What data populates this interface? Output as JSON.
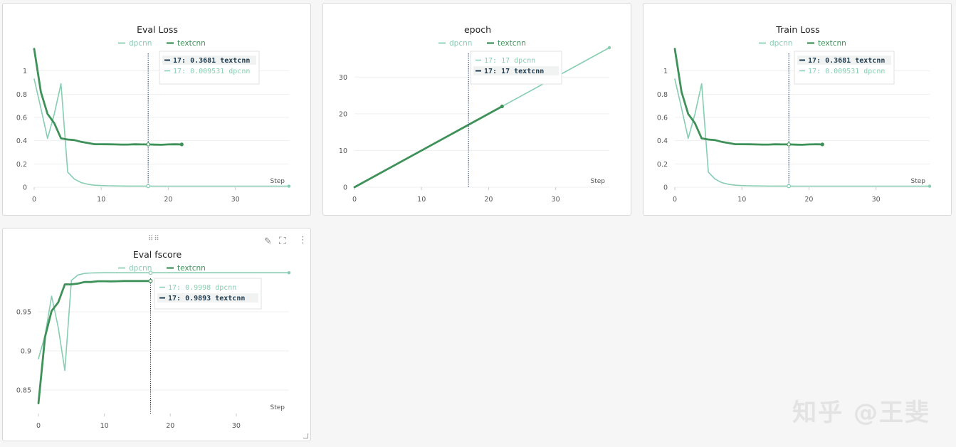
{
  "colors": {
    "dpcnn": "#86cdb2",
    "textcnn": "#3e9158",
    "grid": "#efefef",
    "cursor": "#1f3b6e"
  },
  "icons": {
    "edit": "pencil-icon",
    "expand": "fullscreen-icon",
    "more": "more-vertical-icon",
    "drag": "drag-handle-icon"
  },
  "watermark": "知乎 @王斐",
  "panels": [
    {
      "title": "Eval Loss",
      "legend": [
        "dpcnn",
        "textcnn"
      ],
      "step_label": "Step",
      "xticks": [
        "0",
        "10",
        "20",
        "30"
      ],
      "yticks": [
        "0",
        "0.2",
        "0.4",
        "0.6",
        "0.8",
        "1"
      ],
      "tooltip": [
        {
          "text": "17: 0.3681 textcnn",
          "series": "textcnn",
          "bold": true
        },
        {
          "text": "17: 0.009531 dpcnn",
          "series": "dpcnn",
          "bold": false
        }
      ]
    },
    {
      "title": "epoch",
      "legend": [
        "dpcnn",
        "textcnn"
      ],
      "step_label": "Step",
      "xticks": [
        "0",
        "10",
        "20",
        "30"
      ],
      "yticks": [
        "0",
        "10",
        "20",
        "30"
      ],
      "tooltip": [
        {
          "text": "17: 17 dpcnn",
          "series": "dpcnn",
          "bold": false
        },
        {
          "text": "17: 17 textcnn",
          "series": "textcnn",
          "bold": true
        }
      ]
    },
    {
      "title": "Train Loss",
      "legend": [
        "dpcnn",
        "textcnn"
      ],
      "step_label": "Step",
      "xticks": [
        "0",
        "10",
        "20",
        "30"
      ],
      "yticks": [
        "0",
        "0.2",
        "0.4",
        "0.6",
        "0.8",
        "1"
      ],
      "tooltip": [
        {
          "text": "17: 0.3681 textcnn",
          "series": "textcnn",
          "bold": true
        },
        {
          "text": "17: 0.009531 dpcnn",
          "series": "dpcnn",
          "bold": false
        }
      ]
    },
    {
      "title": "Eval fscore",
      "legend": [
        "dpcnn",
        "textcnn"
      ],
      "step_label": "Step",
      "xticks": [
        "0",
        "10",
        "20",
        "30"
      ],
      "yticks": [
        "0.85",
        "0.9",
        "0.95"
      ],
      "tooltip": [
        {
          "text": "17: 0.9998 dpcnn",
          "series": "dpcnn",
          "bold": false
        },
        {
          "text": "17: 0.9893 textcnn",
          "series": "textcnn",
          "bold": true
        }
      ]
    }
  ],
  "chart_data": [
    {
      "type": "line",
      "title": "Eval Loss",
      "xlabel": "Step",
      "ylabel": "",
      "xlim": [
        0,
        38
      ],
      "ylim": [
        0,
        1.2
      ],
      "cursor_x": 17,
      "series": [
        {
          "name": "dpcnn",
          "x": [
            0,
            1,
            2,
            3,
            4,
            5,
            6,
            7,
            8,
            9,
            10,
            11,
            12,
            13,
            14,
            15,
            16,
            17,
            18,
            19,
            20,
            21,
            22,
            23,
            24,
            25,
            26,
            27,
            28,
            29,
            30,
            31,
            32,
            33,
            34,
            35,
            36,
            37,
            38
          ],
          "y": [
            0.93,
            0.68,
            0.42,
            0.63,
            0.89,
            0.13,
            0.07,
            0.04,
            0.025,
            0.017,
            0.014,
            0.012,
            0.011,
            0.0105,
            0.01,
            0.0098,
            0.0096,
            0.0095,
            0.0094,
            0.0093,
            0.0092,
            0.0091,
            0.009,
            0.009,
            0.009,
            0.009,
            0.009,
            0.009,
            0.009,
            0.009,
            0.009,
            0.009,
            0.009,
            0.009,
            0.009,
            0.009,
            0.009,
            0.009,
            0.009
          ]
        },
        {
          "name": "textcnn",
          "x": [
            0,
            1,
            2,
            3,
            4,
            5,
            6,
            7,
            8,
            9,
            10,
            11,
            12,
            13,
            14,
            15,
            16,
            17,
            18,
            19,
            20,
            21,
            22
          ],
          "y": [
            1.19,
            0.82,
            0.63,
            0.55,
            0.42,
            0.41,
            0.405,
            0.39,
            0.38,
            0.37,
            0.37,
            0.369,
            0.368,
            0.367,
            0.367,
            0.369,
            0.368,
            0.3681,
            0.366,
            0.365,
            0.368,
            0.369,
            0.368
          ]
        }
      ]
    },
    {
      "type": "line",
      "title": "epoch",
      "xlabel": "Step",
      "ylabel": "",
      "xlim": [
        0,
        38
      ],
      "ylim": [
        0,
        38
      ],
      "cursor_x": 17,
      "series": [
        {
          "name": "dpcnn",
          "x": [
            0,
            38
          ],
          "y": [
            0,
            38
          ]
        },
        {
          "name": "textcnn",
          "x": [
            0,
            22
          ],
          "y": [
            0,
            22
          ]
        }
      ]
    },
    {
      "type": "line",
      "title": "Train Loss",
      "xlabel": "Step",
      "ylabel": "",
      "xlim": [
        0,
        38
      ],
      "ylim": [
        0,
        1.2
      ],
      "cursor_x": 17,
      "series": [
        {
          "name": "dpcnn",
          "x": [
            0,
            1,
            2,
            3,
            4,
            5,
            6,
            7,
            8,
            9,
            10,
            11,
            12,
            13,
            14,
            15,
            16,
            17,
            18,
            19,
            20,
            21,
            22,
            23,
            24,
            25,
            26,
            27,
            28,
            29,
            30,
            31,
            32,
            33,
            34,
            35,
            36,
            37,
            38
          ],
          "y": [
            0.93,
            0.68,
            0.42,
            0.63,
            0.89,
            0.13,
            0.07,
            0.04,
            0.025,
            0.017,
            0.014,
            0.012,
            0.011,
            0.0105,
            0.01,
            0.0098,
            0.0096,
            0.0095,
            0.0094,
            0.0093,
            0.0092,
            0.0091,
            0.009,
            0.009,
            0.009,
            0.009,
            0.009,
            0.009,
            0.009,
            0.009,
            0.009,
            0.009,
            0.009,
            0.009,
            0.009,
            0.009,
            0.009,
            0.009,
            0.009
          ]
        },
        {
          "name": "textcnn",
          "x": [
            0,
            1,
            2,
            3,
            4,
            5,
            6,
            7,
            8,
            9,
            10,
            11,
            12,
            13,
            14,
            15,
            16,
            17,
            18,
            19,
            20,
            21,
            22
          ],
          "y": [
            1.19,
            0.82,
            0.63,
            0.55,
            0.42,
            0.41,
            0.405,
            0.39,
            0.38,
            0.37,
            0.37,
            0.369,
            0.368,
            0.367,
            0.367,
            0.369,
            0.368,
            0.3681,
            0.366,
            0.365,
            0.368,
            0.369,
            0.368
          ]
        }
      ]
    },
    {
      "type": "line",
      "title": "Eval fscore",
      "xlabel": "Step",
      "ylabel": "",
      "xlim": [
        0,
        38
      ],
      "ylim": [
        0.82,
        1.0
      ],
      "cursor_x": 17,
      "series": [
        {
          "name": "dpcnn",
          "x": [
            0,
            1,
            2,
            3,
            4,
            5,
            6,
            7,
            8,
            9,
            10,
            11,
            12,
            13,
            14,
            15,
            16,
            17,
            18,
            19,
            20,
            21,
            22,
            23,
            24,
            25,
            26,
            27,
            28,
            29,
            30,
            31,
            32,
            33,
            34,
            35,
            36,
            37,
            38
          ],
          "y": [
            0.89,
            0.92,
            0.97,
            0.93,
            0.875,
            0.99,
            0.997,
            0.999,
            0.9995,
            0.9997,
            0.9998,
            0.9998,
            0.9998,
            0.9998,
            0.9998,
            0.9998,
            0.9998,
            0.9998,
            0.9998,
            0.9998,
            0.9998,
            0.9998,
            0.9998,
            0.9998,
            0.9998,
            0.9998,
            0.9998,
            0.9998,
            0.9998,
            0.9998,
            0.9998,
            0.9998,
            0.9998,
            0.9998,
            0.9998,
            0.9998,
            0.9998,
            0.9998,
            0.9998
          ]
        },
        {
          "name": "textcnn",
          "x": [
            0,
            1,
            2,
            3,
            4,
            5,
            6,
            7,
            8,
            9,
            10,
            11,
            12,
            13,
            14,
            15,
            16,
            17
          ],
          "y": [
            0.833,
            0.918,
            0.951,
            0.962,
            0.985,
            0.985,
            0.986,
            0.988,
            0.988,
            0.989,
            0.989,
            0.9888,
            0.989,
            0.9893,
            0.9893,
            0.9893,
            0.9893,
            0.9893
          ]
        }
      ]
    }
  ]
}
